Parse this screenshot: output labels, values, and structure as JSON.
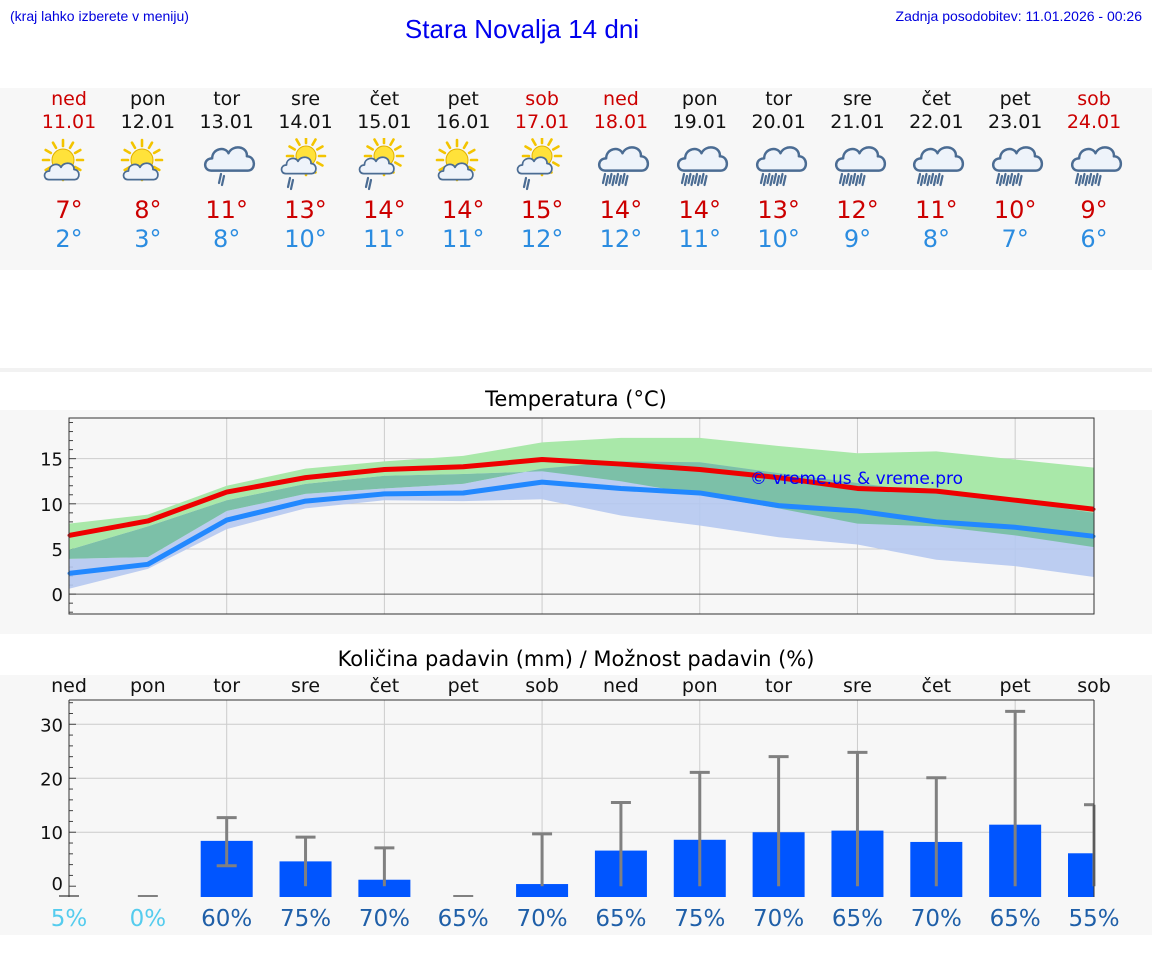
{
  "header": {
    "left_note": "(kraj lahko izberete v meniju)",
    "title": "Stara Novalja 14 dni",
    "updated": "Zadnja posodobitev: 11.01.2026 - 00:26"
  },
  "days": [
    {
      "name": "ned",
      "date": "11.01",
      "weekend": true,
      "icon": "sun-cloud-icon",
      "tmax": "7°",
      "tmin": "2°"
    },
    {
      "name": "pon",
      "date": "12.01",
      "weekend": false,
      "icon": "sun-cloud-icon",
      "tmax": "8°",
      "tmin": "3°"
    },
    {
      "name": "tor",
      "date": "13.01",
      "weekend": false,
      "icon": "cloud-light-rain-icon",
      "tmax": "11°",
      "tmin": "8°"
    },
    {
      "name": "sre",
      "date": "14.01",
      "weekend": false,
      "icon": "sun-cloud-rain-icon",
      "tmax": "13°",
      "tmin": "10°"
    },
    {
      "name": "čet",
      "date": "15.01",
      "weekend": false,
      "icon": "sun-cloud-rain-icon",
      "tmax": "14°",
      "tmin": "11°"
    },
    {
      "name": "pet",
      "date": "16.01",
      "weekend": false,
      "icon": "sun-cloud-icon",
      "tmax": "14°",
      "tmin": "11°"
    },
    {
      "name": "sob",
      "date": "17.01",
      "weekend": true,
      "icon": "sun-cloud-rain-icon",
      "tmax": "15°",
      "tmin": "12°"
    },
    {
      "name": "ned",
      "date": "18.01",
      "weekend": true,
      "icon": "cloud-rain-icon",
      "tmax": "14°",
      "tmin": "12°"
    },
    {
      "name": "pon",
      "date": "19.01",
      "weekend": false,
      "icon": "cloud-rain-icon",
      "tmax": "14°",
      "tmin": "11°"
    },
    {
      "name": "tor",
      "date": "20.01",
      "weekend": false,
      "icon": "cloud-rain-icon",
      "tmax": "13°",
      "tmin": "10°"
    },
    {
      "name": "sre",
      "date": "21.01",
      "weekend": false,
      "icon": "cloud-rain-icon",
      "tmax": "12°",
      "tmin": "9°"
    },
    {
      "name": "čet",
      "date": "22.01",
      "weekend": false,
      "icon": "cloud-rain-icon",
      "tmax": "11°",
      "tmin": "8°"
    },
    {
      "name": "pet",
      "date": "23.01",
      "weekend": false,
      "icon": "cloud-rain-icon",
      "tmax": "10°",
      "tmin": "7°"
    },
    {
      "name": "sob",
      "date": "24.01",
      "weekend": true,
      "icon": "cloud-rain-icon",
      "tmax": "9°",
      "tmin": "6°"
    }
  ],
  "chart_data": [
    {
      "type": "line",
      "title": "Temperatura (°C)",
      "xlabel": "",
      "ylabel": "",
      "ylim": [
        -2.2,
        19.5
      ],
      "yticks": [
        0,
        5,
        10,
        15
      ],
      "x": [
        0,
        1,
        2,
        3,
        4,
        5,
        6,
        7,
        8,
        9,
        10,
        11,
        12,
        13
      ],
      "watermark": "© vreme.us & vreme.pro",
      "series": [
        {
          "name": "max",
          "color": "#ee0000",
          "values": [
            6.5,
            8.1,
            11.3,
            12.9,
            13.8,
            14.1,
            14.9,
            14.4,
            13.8,
            12.9,
            11.7,
            11.4,
            10.4,
            9.4
          ],
          "band_low": [
            4.9,
            7.5,
            10.4,
            12.2,
            13.1,
            13.3,
            13.6,
            12.5,
            11.0,
            9.5,
            7.8,
            7.5,
            6.5,
            5.2
          ],
          "band_high": [
            7.8,
            8.8,
            12.0,
            13.9,
            14.7,
            15.3,
            16.8,
            17.3,
            17.3,
            16.4,
            15.6,
            15.8,
            14.9,
            14.0
          ]
        },
        {
          "name": "min",
          "color": "#2288ff",
          "values": [
            2.3,
            3.3,
            8.2,
            10.3,
            11.1,
            11.2,
            12.4,
            11.7,
            11.2,
            9.8,
            9.2,
            8.0,
            7.4,
            6.4
          ],
          "band_low": [
            0.6,
            2.8,
            7.2,
            9.5,
            10.4,
            10.3,
            10.5,
            8.7,
            7.6,
            6.3,
            5.5,
            3.8,
            3.1,
            1.9
          ],
          "band_high": [
            3.9,
            4.1,
            9.2,
            11.1,
            11.7,
            12.2,
            13.9,
            14.7,
            14.6,
            13.4,
            12.3,
            11.2,
            10.3,
            9.0
          ]
        }
      ]
    },
    {
      "type": "bar",
      "title": "Količina padavin (mm) / Možnost padavin (%)",
      "ylim": [
        -2,
        34.5
      ],
      "yticks": [
        0,
        10,
        20,
        30
      ],
      "categories": [
        "ned",
        "pon",
        "tor",
        "sre",
        "čet",
        "pet",
        "sob",
        "ned",
        "pon",
        "tor",
        "sre",
        "čet",
        "pet",
        "sob"
      ],
      "values": [
        0,
        0,
        8.4,
        4.6,
        1.2,
        0,
        0.4,
        6.6,
        8.6,
        10.0,
        10.3,
        8.2,
        11.4,
        6.1
      ],
      "error_low": [
        0,
        0,
        3.8,
        0,
        0,
        0,
        0,
        0,
        0,
        0,
        0,
        0,
        0,
        0
      ],
      "error_high": [
        0,
        0,
        12.7,
        9.1,
        7.1,
        0,
        9.7,
        15.5,
        21.1,
        24.0,
        24.8,
        20.1,
        32.4,
        15.1
      ],
      "probability": [
        "5%",
        "0%",
        "60%",
        "75%",
        "70%",
        "65%",
        "70%",
        "65%",
        "75%",
        "70%",
        "65%",
        "70%",
        "65%",
        "55%"
      ],
      "probability_colors": [
        "#55ccee",
        "#55ccee",
        "#1f5fa8",
        "#1f5fa8",
        "#1f5fa8",
        "#1f5fa8",
        "#1f5fa8",
        "#1f5fa8",
        "#1f5fa8",
        "#1f5fa8",
        "#1f5fa8",
        "#1f5fa8",
        "#1f5fa8",
        "#1f5fa8"
      ]
    }
  ],
  "colors": {
    "max_band": "#a9e8a9",
    "min_band": "#b5c8f0",
    "overlap_band": "#7cc0a8",
    "bar": "#0055ff",
    "error": "#808080",
    "grid": "#cccccc",
    "weekend": "#cc0000",
    "watermark": "#0000ff"
  }
}
